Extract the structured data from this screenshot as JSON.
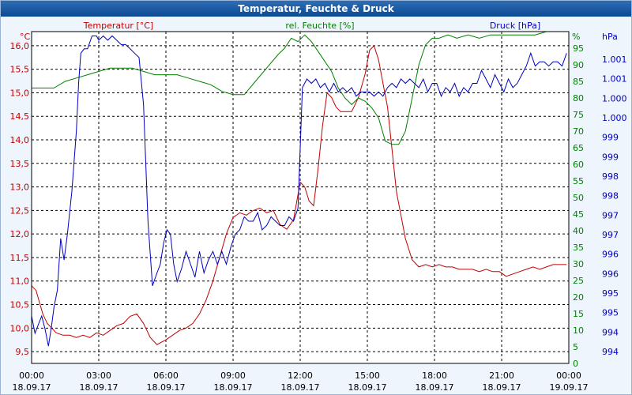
{
  "window": {
    "title": "Temperatur, Feuchte & Druck"
  },
  "colors": {
    "temp": "#c00000",
    "hum": "#008000",
    "press": "#0000c0",
    "grid": "#000000",
    "plot_bg": "#ffffff",
    "frame_bg": "#eef5fc"
  },
  "chart_data": {
    "type": "line",
    "title": "Temperatur, Feuchte & Druck",
    "grid": true,
    "x_ticks": [
      {
        "time": "00:00",
        "date": "18.09.17"
      },
      {
        "time": "03:00",
        "date": "18.09.17"
      },
      {
        "time": "06:00",
        "date": "18.09.17"
      },
      {
        "time": "09:00",
        "date": "18.09.17"
      },
      {
        "time": "12:00",
        "date": "18.09.17"
      },
      {
        "time": "15:00",
        "date": "18.09.17"
      },
      {
        "time": "18:00",
        "date": "18.09.17"
      },
      {
        "time": "21:00",
        "date": "18.09.17"
      },
      {
        "time": "00:00",
        "date": "19.09.17"
      }
    ],
    "xlim_hours": [
      0,
      24
    ],
    "axes": {
      "temp": {
        "unit": "°C",
        "ylim": [
          9.25,
          16.3
        ],
        "ticks": [
          "9,5",
          "10,0",
          "10,5",
          "11,0",
          "11,5",
          "12,0",
          "12,5",
          "13,0",
          "13,5",
          "14,0",
          "14,5",
          "15,0",
          "15,5",
          "16,0"
        ]
      },
      "hum": {
        "unit": "%",
        "ylim": [
          0,
          100
        ],
        "ticks": [
          "0",
          "5",
          "10",
          "15",
          "20",
          "25",
          "30",
          "35",
          "40",
          "45",
          "50",
          "55",
          "60",
          "65",
          "70",
          "75",
          "80",
          "85",
          "90",
          "95",
          "%"
        ]
      },
      "press": {
        "unit": "hPa",
        "ylim": [
          993.7,
          1001.4
        ],
        "ticks": [
          "994",
          "994",
          "995",
          "995",
          "996",
          "996",
          "997",
          "997",
          "998",
          "998",
          "999",
          "999",
          "1.000",
          "1.000",
          "1.001",
          "1.001"
        ]
      }
    },
    "series": [
      {
        "name": "Temperatur [°C]",
        "key": "temp",
        "x": [
          0,
          0.2,
          0.35,
          0.5,
          0.7,
          0.9,
          1.1,
          1.4,
          1.7,
          2.0,
          2.3,
          2.6,
          2.9,
          3.2,
          3.5,
          3.8,
          4.1,
          4.4,
          4.7,
          5.0,
          5.3,
          5.6,
          5.8,
          6.0,
          6.3,
          6.6,
          6.9,
          7.2,
          7.5,
          7.8,
          8.1,
          8.4,
          8.7,
          9.0,
          9.3,
          9.6,
          9.9,
          10.2,
          10.5,
          10.8,
          11.1,
          11.4,
          11.7,
          12.0,
          12.2,
          12.4,
          12.6,
          12.8,
          13.0,
          13.2,
          13.4,
          13.6,
          13.8,
          14.0,
          14.3,
          14.6,
          14.9,
          15.1,
          15.3,
          15.5,
          15.7,
          15.9,
          16.1,
          16.3,
          16.5,
          16.7,
          17.0,
          17.3,
          17.6,
          17.9,
          18.2,
          18.5,
          18.8,
          19.1,
          19.4,
          19.7,
          20.0,
          20.3,
          20.6,
          20.9,
          21.2,
          21.5,
          21.8,
          22.1,
          22.4,
          22.7,
          23.0,
          23.3,
          23.6,
          23.9
        ],
        "values": [
          10.9,
          10.8,
          10.55,
          10.3,
          10.1,
          10.0,
          9.9,
          9.85,
          9.85,
          9.8,
          9.85,
          9.8,
          9.9,
          9.85,
          9.95,
          10.05,
          10.1,
          10.25,
          10.3,
          10.1,
          9.8,
          9.65,
          9.7,
          9.75,
          9.85,
          9.95,
          10.0,
          10.1,
          10.3,
          10.6,
          11.0,
          11.5,
          12.0,
          12.35,
          12.45,
          12.4,
          12.5,
          12.55,
          12.45,
          12.5,
          12.2,
          12.1,
          12.3,
          13.1,
          13.0,
          12.7,
          12.6,
          13.4,
          14.3,
          15.0,
          14.9,
          14.7,
          14.6,
          14.6,
          14.6,
          14.9,
          15.4,
          15.9,
          16.0,
          15.7,
          15.2,
          14.7,
          13.8,
          12.9,
          12.4,
          11.9,
          11.45,
          11.3,
          11.35,
          11.3,
          11.35,
          11.3,
          11.3,
          11.25,
          11.25,
          11.25,
          11.2,
          11.25,
          11.2,
          11.2,
          11.1,
          11.15,
          11.2,
          11.25,
          11.3,
          11.25,
          11.3,
          11.35,
          11.35,
          11.35
        ]
      },
      {
        "name": "rel. Feuchte [%]",
        "key": "hum",
        "x": [
          0,
          0.5,
          1.0,
          1.5,
          2.0,
          2.5,
          3.0,
          3.5,
          4.0,
          4.5,
          5.0,
          5.5,
          6.0,
          6.5,
          7.0,
          7.5,
          8.0,
          8.5,
          9.0,
          9.5,
          10.0,
          10.5,
          11.0,
          11.3,
          11.6,
          11.9,
          12.2,
          12.5,
          12.8,
          13.1,
          13.4,
          13.7,
          14.0,
          14.3,
          14.6,
          14.9,
          15.2,
          15.5,
          15.8,
          16.1,
          16.4,
          16.7,
          17.0,
          17.3,
          17.6,
          17.9,
          18.2,
          18.6,
          19.0,
          19.5,
          20.0,
          20.5,
          21.0,
          21.5,
          22.0,
          22.5,
          23.0,
          23.5,
          24.0
        ],
        "values": [
          83,
          83,
          83,
          85,
          86,
          87,
          88,
          89,
          89,
          89,
          88,
          87,
          87,
          87,
          86,
          85,
          84,
          82,
          81,
          81,
          85,
          89,
          93,
          95,
          98,
          97,
          99,
          97,
          94,
          91,
          88,
          83,
          80,
          78,
          80,
          79,
          77,
          74,
          67,
          66,
          66,
          70,
          80,
          90,
          96,
          98,
          98,
          99,
          98,
          99,
          98,
          99,
          99,
          99,
          99,
          99,
          100,
          100,
          100
        ]
      },
      {
        "name": "Druck [hPa]",
        "key": "press",
        "x": [
          0,
          0.15,
          0.3,
          0.45,
          0.6,
          0.75,
          0.9,
          1.0,
          1.15,
          1.3,
          1.45,
          1.6,
          1.8,
          2.0,
          2.1,
          2.2,
          2.35,
          2.5,
          2.7,
          2.9,
          3.0,
          3.2,
          3.4,
          3.6,
          3.8,
          4.0,
          4.2,
          4.4,
          4.6,
          4.8,
          5.0,
          5.2,
          5.4,
          5.6,
          5.75,
          5.9,
          6.05,
          6.2,
          6.35,
          6.5,
          6.7,
          6.9,
          7.1,
          7.3,
          7.5,
          7.7,
          7.9,
          8.1,
          8.3,
          8.5,
          8.7,
          8.9,
          9.1,
          9.3,
          9.5,
          9.7,
          9.9,
          10.1,
          10.3,
          10.5,
          10.7,
          10.9,
          11.1,
          11.3,
          11.5,
          11.7,
          11.9,
          12.1,
          12.3,
          12.5,
          12.7,
          12.9,
          13.1,
          13.3,
          13.5,
          13.7,
          13.9,
          14.1,
          14.3,
          14.5,
          14.7,
          14.9,
          15.1,
          15.3,
          15.5,
          15.7,
          15.9,
          16.1,
          16.3,
          16.5,
          16.7,
          16.9,
          17.1,
          17.3,
          17.5,
          17.7,
          17.9,
          18.1,
          18.3,
          18.5,
          18.7,
          18.9,
          19.1,
          19.3,
          19.5,
          19.7,
          19.9,
          20.1,
          20.3,
          20.5,
          20.7,
          20.9,
          21.1,
          21.3,
          21.5,
          21.7,
          21.9,
          22.1,
          22.3,
          22.5,
          22.7,
          22.9,
          23.1,
          23.3,
          23.5,
          23.7,
          23.9
        ],
        "values": [
          994.8,
          994.4,
          994.6,
          994.8,
          994.5,
          994.1,
          994.6,
          995.0,
          995.4,
          996.6,
          996.1,
          996.7,
          997.7,
          999.1,
          1000.2,
          1000.9,
          1001.0,
          1001.0,
          1001.3,
          1001.3,
          1001.2,
          1001.3,
          1001.2,
          1001.3,
          1001.2,
          1001.1,
          1001.1,
          1001.0,
          1000.9,
          1000.8,
          999.7,
          997.0,
          995.5,
          995.8,
          996.0,
          996.5,
          996.8,
          996.7,
          996.0,
          995.6,
          995.9,
          996.3,
          996.0,
          995.7,
          996.3,
          995.8,
          996.1,
          996.3,
          996.0,
          996.3,
          996.0,
          996.4,
          996.7,
          996.8,
          997.1,
          997.0,
          997.0,
          997.2,
          996.8,
          996.9,
          997.1,
          997.0,
          996.9,
          996.9,
          997.1,
          997.0,
          997.3,
          1000.1,
          1000.3,
          1000.2,
          1000.3,
          1000.1,
          1000.2,
          1000.0,
          1000.2,
          1000.0,
          1000.1,
          1000.0,
          1000.1,
          999.9,
          1000.0,
          1000.0,
          1000.0,
          999.9,
          1000.0,
          999.9,
          1000.1,
          1000.2,
          1000.1,
          1000.3,
          1000.2,
          1000.3,
          1000.2,
          1000.1,
          1000.3,
          1000.0,
          1000.2,
          1000.2,
          999.9,
          1000.1,
          1000.0,
          1000.2,
          999.9,
          1000.1,
          1000.0,
          1000.2,
          1000.2,
          1000.5,
          1000.3,
          1000.1,
          1000.4,
          1000.2,
          1000.0,
          1000.3,
          1000.1,
          1000.2,
          1000.4,
          1000.6,
          1000.9,
          1000.6,
          1000.7,
          1000.7,
          1000.6,
          1000.7,
          1000.7,
          1000.6,
          1000.9
        ]
      }
    ]
  }
}
